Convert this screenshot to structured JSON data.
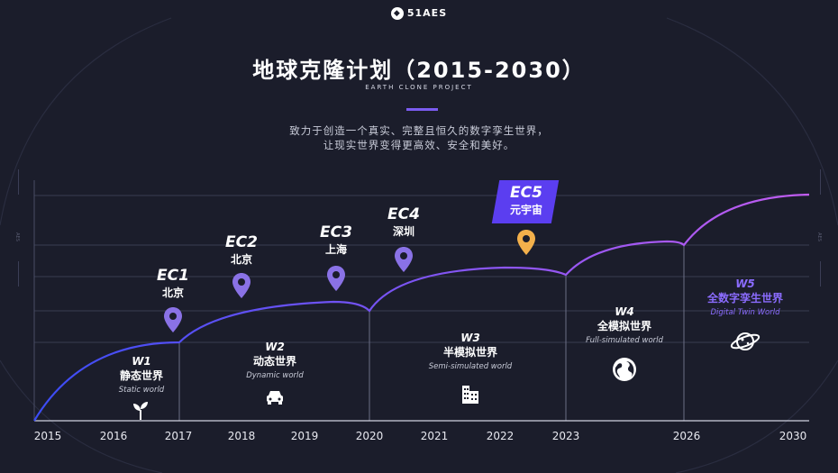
{
  "header": {
    "logo_text": "51AES",
    "title": "地球克隆计划（2015-2030）",
    "subtitle": "EARTH CLONE PROJECT",
    "description_line1": "致力于创造一个真实、完整且恒久的数字孪生世界，",
    "description_line2": "让现实世界变得更高效、安全和美好。"
  },
  "side_marks": {
    "left": "AES",
    "right": "AES"
  },
  "timeline": {
    "years": [
      "2015",
      "2016",
      "2017",
      "2018",
      "2019",
      "2020",
      "2021",
      "2022",
      "2023",
      "2026",
      "2030"
    ],
    "stages": [
      {
        "code": "W1",
        "name_cn": "静态世界",
        "name_en": "Static world",
        "icon": "sprout-icon"
      },
      {
        "code": "W2",
        "name_cn": "动态世界",
        "name_en": "Dynamic world",
        "icon": "car-icon"
      },
      {
        "code": "W3",
        "name_cn": "半模拟世界",
        "name_en": "Semi-simulated world",
        "icon": "buildings-icon"
      },
      {
        "code": "W4",
        "name_cn": "全模拟世界",
        "name_en": "Full-simulated world",
        "icon": "globe-icon"
      },
      {
        "code": "W5",
        "name_cn": "全数字孪生世界",
        "name_en": "Digital Twin World",
        "icon": "planet-icon"
      }
    ],
    "milestones": [
      {
        "code": "EC1",
        "city": "北京"
      },
      {
        "code": "EC2",
        "city": "北京"
      },
      {
        "code": "EC3",
        "city": "上海"
      },
      {
        "code": "EC4",
        "city": "深圳"
      },
      {
        "code": "EC5",
        "city": "元宇宙"
      }
    ]
  },
  "colors": {
    "background": "#1b1d2b",
    "curve_start": "#3b4cf5",
    "curve_end": "#c15cf0",
    "pin_purple": "#8a72e6",
    "pin_orange": "#f3b04b",
    "ec5_box": "#5b3ef0",
    "w5_text": "#8b6cff"
  }
}
